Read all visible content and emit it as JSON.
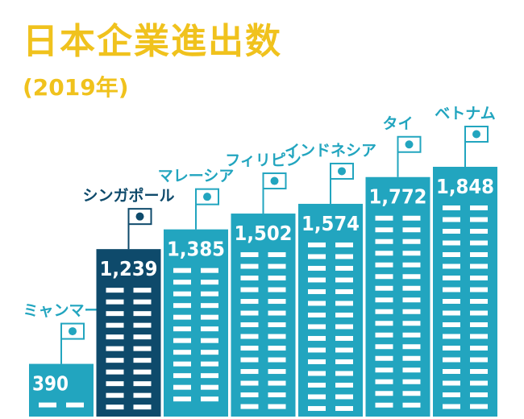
{
  "header": {
    "title": "日本企業進出数",
    "subtitle": "(2019年)"
  },
  "colors": {
    "accent": "#F0C21D",
    "bar": "#22A5BF",
    "highlight": "#0E4A6B",
    "label": "#22A5BF",
    "white": "#FFFFFF"
  },
  "chart_data": {
    "type": "bar",
    "title": "日本企業進出数",
    "subtitle": "(2019年)",
    "categories": [
      "ミャンマー",
      "シンガポール",
      "マレーシア",
      "フィリピン",
      "インドネシア",
      "タイ",
      "ベトナム"
    ],
    "values": [
      390,
      1239,
      1385,
      1502,
      1574,
      1772,
      1848
    ],
    "value_labels": [
      "390",
      "1,239",
      "1,385",
      "1,502",
      "1,574",
      "1,772",
      "1,848"
    ],
    "highlight": "シンガポール",
    "xlabel": "",
    "ylabel": "",
    "grid": false,
    "legend": "none"
  }
}
